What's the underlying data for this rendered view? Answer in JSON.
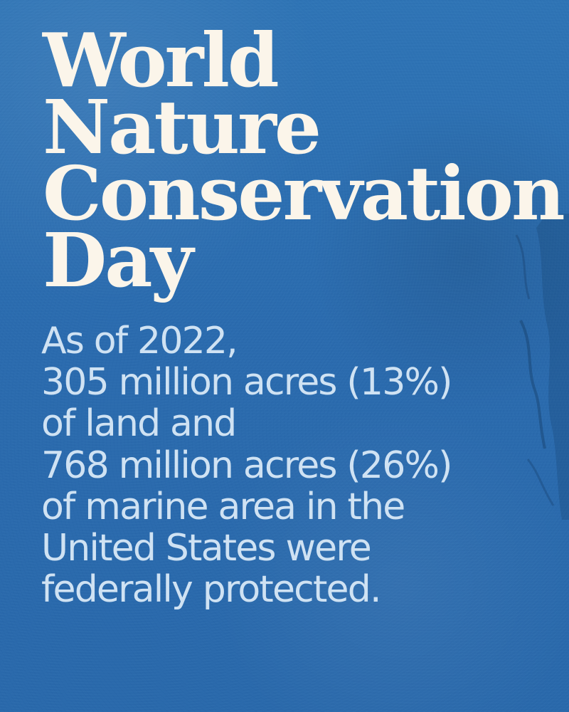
{
  "poster": {
    "title_lines": [
      "World",
      "Nature",
      "Conservation",
      "Day"
    ],
    "body_lines": [
      "As of 2022,",
      "305 million acres (13%)",
      "of land and",
      "768 million acres (26%)",
      "of marine area in the",
      "United States were",
      "federally protected."
    ]
  },
  "colors": {
    "background": "#2a69ab",
    "title_text": "#fbf5ea",
    "body_text": "#cfe2f3"
  }
}
